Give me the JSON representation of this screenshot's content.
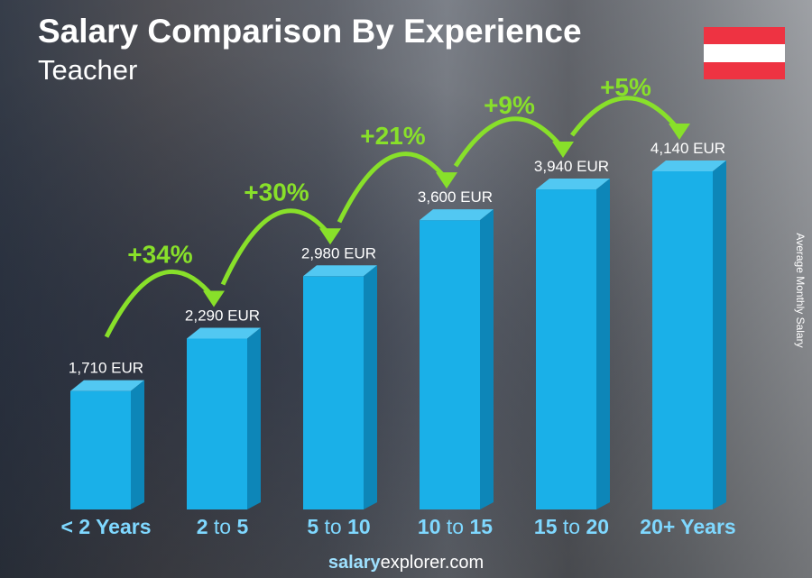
{
  "title": "Salary Comparison By Experience",
  "subtitle": "Teacher",
  "flag_colors": [
    "#ee3342",
    "#ffffff",
    "#ee3342"
  ],
  "footer": {
    "brand_bold": "salary",
    "brand_rest": "explorer",
    "brand_tld": ".com"
  },
  "chart_data": {
    "type": "bar",
    "ylabel": "Average Monthly Salary",
    "categories": [
      [
        "< 2 Years"
      ],
      [
        "2",
        " to ",
        "5"
      ],
      [
        "5",
        " to ",
        "10"
      ],
      [
        "10",
        " to ",
        "15"
      ],
      [
        "15",
        " to ",
        "20"
      ],
      [
        "20+ Years"
      ]
    ],
    "values": [
      1710,
      2290,
      2980,
      3600,
      3940,
      4140
    ],
    "value_labels": [
      "1,710 EUR",
      "2,290 EUR",
      "2,980 EUR",
      "3,600 EUR",
      "3,940 EUR",
      "4,140 EUR"
    ],
    "changes": [
      "+34%",
      "+30%",
      "+21%",
      "+9%",
      "+5%"
    ],
    "bar_color": "#1ab0e8",
    "change_color": "#88e02a",
    "label_color": "#7fd8ff"
  }
}
